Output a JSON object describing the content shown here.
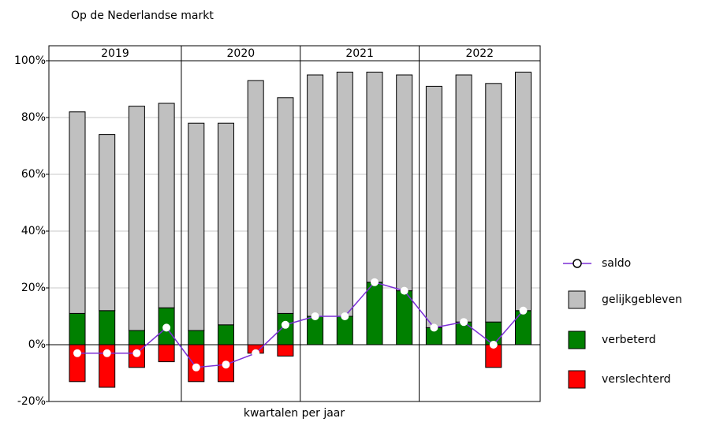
{
  "chart_data": {
    "type": "bar",
    "title": "Op de Nederlandse markt",
    "x_label": "kwartalen per jaar",
    "groups": [
      "2019",
      "2020",
      "2021",
      "2022"
    ],
    "categories": [
      null,
      null,
      null,
      null,
      null,
      null,
      null,
      null,
      null,
      null,
      null,
      null,
      null,
      null,
      null,
      null
    ],
    "series": [
      {
        "name": "saldo",
        "type": "line",
        "color": "#7b2fd6",
        "values": [
          -3,
          -3,
          -3,
          6,
          -8,
          -7,
          -3,
          7,
          10,
          10,
          22,
          19,
          6,
          8,
          0,
          12
        ]
      },
      {
        "name": "gelijkgebleven",
        "color": "#c0c0c0",
        "values": [
          71,
          62,
          79,
          72,
          73,
          71,
          93,
          76,
          85,
          86,
          74,
          76,
          85,
          87,
          84,
          84
        ]
      },
      {
        "name": "verbeterd",
        "color": "#008000",
        "values": [
          11,
          12,
          5,
          13,
          5,
          7,
          0,
          11,
          10,
          10,
          22,
          19,
          6,
          8,
          8,
          12
        ]
      },
      {
        "name": "verslechterd",
        "color": "#ff0000",
        "values": [
          -13,
          -15,
          -8,
          -6,
          -13,
          -13,
          -3,
          -4,
          0,
          0,
          0,
          0,
          0,
          0,
          -8,
          0
        ]
      }
    ],
    "ylim": [
      -20,
      100
    ],
    "yticks": [
      {
        "value": -20,
        "label": "-20%"
      },
      {
        "value": 0,
        "label": "0%"
      },
      {
        "value": 20,
        "label": "20%"
      },
      {
        "value": 40,
        "label": "40%"
      },
      {
        "value": 60,
        "label": "60%"
      },
      {
        "value": 80,
        "label": "80%"
      },
      {
        "value": 100,
        "label": "100%"
      }
    ],
    "grid": true
  }
}
